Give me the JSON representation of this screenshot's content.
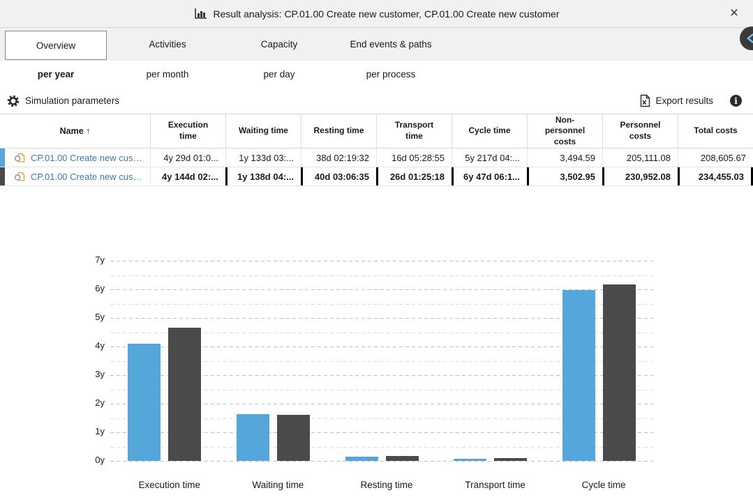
{
  "window": {
    "title": "Result analysis: CP.01.00 Create new customer, CP.01.00 Create new customer",
    "close_label": "×"
  },
  "tabs": [
    {
      "label": "Overview",
      "selected": true
    },
    {
      "label": "Activities",
      "selected": false
    },
    {
      "label": "Capacity",
      "selected": false
    },
    {
      "label": "End events & paths",
      "selected": false
    }
  ],
  "subtabs": [
    {
      "label": "per year",
      "selected": true
    },
    {
      "label": "per month",
      "selected": false
    },
    {
      "label": "per day",
      "selected": false
    },
    {
      "label": "per process",
      "selected": false
    }
  ],
  "toolbar": {
    "simulation_parameters_label": "Simulation parameters",
    "export_results_label": "Export results",
    "info_glyph": "i"
  },
  "table": {
    "sort_arrow": "↑",
    "columns": [
      "Name",
      "Execution time",
      "Waiting time",
      "Resting time",
      "Transport time",
      "Cycle time",
      "Non-personnel costs",
      "Personnel costs",
      "Total costs"
    ],
    "rows": [
      {
        "name": "CP.01.00 Create new customer",
        "strip_color": "#54a6db",
        "emphasis": false,
        "values": [
          "4y 29d 01:0...",
          "1y 133d 03:...",
          "38d 02:19:32",
          "16d 05:28:55",
          "5y 217d 04:...",
          "3,494.59",
          "205,111.08",
          "208,605.67"
        ]
      },
      {
        "name": "CP.01.00 Create new customer",
        "strip_color": "#4a4a4a",
        "emphasis": true,
        "values": [
          "4y 144d 02:...",
          "1y 138d 04:...",
          "40d 03:06:35",
          "26d 01:25:18",
          "6y 47d 06:1...",
          "3,502.95",
          "230,952.08",
          "234,455.03"
        ]
      }
    ]
  },
  "chart_data": {
    "type": "bar",
    "title": "",
    "categories": [
      "Execution time",
      "Waiting time",
      "Resting time",
      "Transport time",
      "Cycle time"
    ],
    "series": [
      {
        "name": "CP.01.00 Create new customer",
        "color": "#54a6db",
        "values": [
          4.1,
          1.63,
          0.15,
          0.07,
          5.97
        ]
      },
      {
        "name": "CP.01.00 Create new customer",
        "color": "#4a4a4a",
        "values": [
          4.65,
          1.6,
          0.17,
          0.1,
          6.18
        ]
      }
    ],
    "ylim": [
      0,
      7
    ],
    "yticks": [
      "0y",
      "1y",
      "2y",
      "3y",
      "4y",
      "5y",
      "6y",
      "7y"
    ],
    "minor_grid_step": 0.5,
    "grid": "horizontal dashed",
    "legend": "none",
    "unit": "years"
  },
  "colors": {
    "series_blue": "#54a6db",
    "series_gray": "#4a4a4a",
    "link": "#3d7aa9",
    "band_bg": "#f1f1f1",
    "selected_cell_border": "#000000"
  }
}
